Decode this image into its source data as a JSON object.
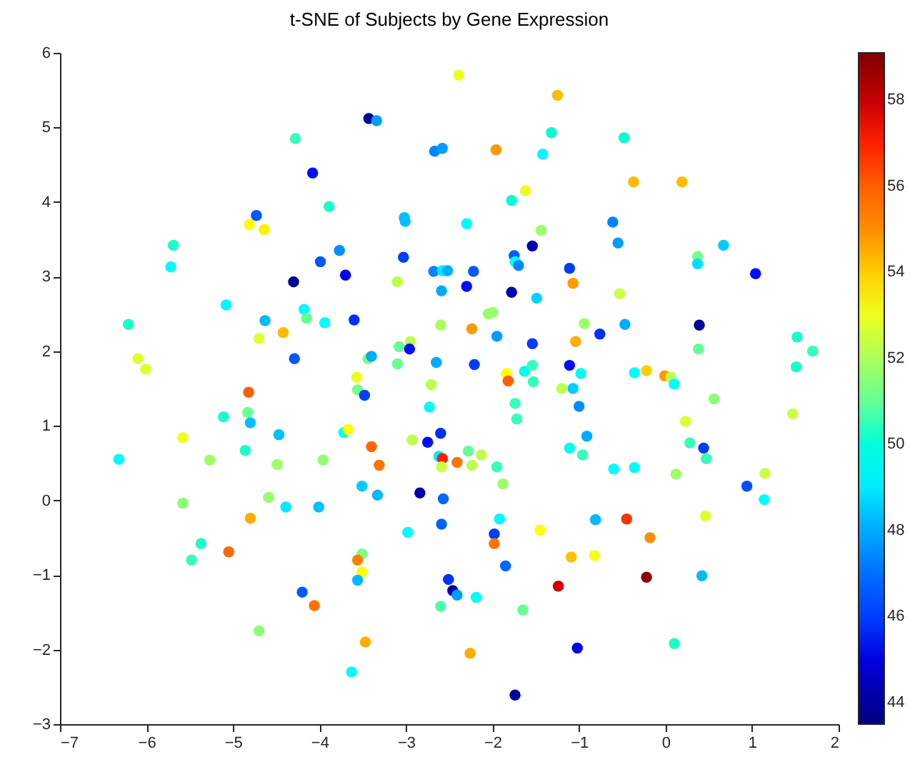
{
  "chart_data": {
    "type": "scatter",
    "title": "t-SNE of Subjects by Gene Expression",
    "marker": "circle",
    "xlim": [
      -7,
      2
    ],
    "xticks": [
      -7,
      -6,
      -5,
      -4,
      -3,
      -2,
      -1,
      0,
      1,
      2
    ],
    "ylim": [
      -3,
      6
    ],
    "yticks": [
      -3,
      -2,
      -1,
      0,
      1,
      2,
      3,
      4,
      5,
      6
    ],
    "clim": [
      43.5,
      59.1
    ],
    "cticks": [
      44,
      46,
      48,
      50,
      52,
      54,
      56,
      58
    ],
    "x": [
      -4.28,
      -4.08,
      -3.89,
      -4.73,
      -4.81,
      -4.64,
      -5.69,
      -5.72,
      -3.99,
      -4.3,
      -5.08,
      -4.18,
      -4.15,
      -3.94,
      -6.21,
      -4.63,
      -4.42,
      -4.7,
      -4.29,
      -6.1,
      -6.01,
      -4.82,
      -2.39,
      -1.25,
      -3.43,
      -3.34,
      -1.32,
      -2.67,
      -2.58,
      -1.96,
      -1.42,
      -1.62,
      -1.78,
      -3.02,
      -3.01,
      -2.3,
      -1.44,
      -1.54,
      -3.77,
      -3.03,
      -1.75,
      -1.74,
      -1.7,
      -1.11,
      -3.7,
      -3.1,
      -2.68,
      -2.58,
      -2.52,
      -2.22,
      -2.3,
      -2.59,
      -1.78,
      -1.07,
      -1.49,
      -3.6,
      -2.05,
      -2.0,
      -2.6,
      -2.24,
      -1.95,
      -0.94,
      -1.54,
      -1.04,
      -2.95,
      -3.08,
      -2.96,
      -3.44,
      -3.4,
      -3.1,
      -2.65,
      -2.21,
      -1.11,
      -0.98,
      -3.57,
      -3.56,
      -3.48,
      -2.71,
      -1.84,
      -1.82,
      -1.63,
      -1.54,
      -1.53,
      -1.2,
      -1.07,
      -0.48,
      -0.37,
      0.19,
      -0.61,
      -0.55,
      0.67,
      0.37,
      0.37,
      1.04,
      -0.53,
      -0.76,
      -0.47,
      0.39,
      0.38,
      1.52,
      1.7,
      1.51,
      -0.36,
      -0.22,
      -0.01,
      0.06,
      0.1,
      -5.11,
      -4.83,
      -4.8,
      -4.47,
      -5.58,
      -6.32,
      -5.27,
      -4.86,
      -4.49,
      -3.96,
      -5.58,
      -4.59,
      -4.39,
      -4.01,
      -4.8,
      -5.37,
      -5.48,
      -5.05,
      -4.2,
      -4.06,
      -4.7,
      -2.73,
      -1.74,
      -1.72,
      -1.0,
      -0.91,
      -3.72,
      -3.67,
      -3.4,
      -3.31,
      -2.93,
      -2.75,
      -2.6,
      -2.62,
      -2.58,
      -2.59,
      -2.41,
      -2.28,
      -2.24,
      -2.13,
      -1.95,
      -1.88,
      -1.11,
      -0.96,
      -3.51,
      -3.33,
      -2.84,
      -2.57,
      -2.59,
      -2.98,
      -1.92,
      -1.98,
      -1.98,
      -1.45,
      -1.09,
      -0.82,
      -3.51,
      -3.56,
      -3.51,
      -3.56,
      -1.85,
      -2.51,
      -2.46,
      -2.41,
      -2.19,
      -1.24,
      -2.6,
      -1.65,
      -3.47,
      -2.26,
      -1.02,
      -3.63,
      -1.74,
      0.56,
      1.47,
      0.23,
      0.28,
      0.44,
      0.47,
      -0.6,
      -0.36,
      0.12,
      1.15,
      0.94,
      1.14,
      -0.81,
      -0.45,
      -0.18,
      0.46,
      -0.22,
      0.42,
      0.1
    ],
    "values": [
      4.85,
      4.39,
      3.94,
      3.82,
      3.7,
      3.63,
      3.42,
      3.13,
      3.2,
      2.93,
      2.62,
      2.56,
      2.44,
      2.38,
      2.36,
      2.41,
      2.25,
      2.17,
      1.9,
      1.9,
      1.76,
      1.45,
      5.7,
      5.43,
      5.12,
      5.09,
      4.93,
      4.68,
      4.72,
      4.7,
      4.64,
      4.15,
      4.02,
      3.79,
      3.74,
      3.71,
      3.62,
      3.41,
      3.35,
      3.26,
      3.28,
      3.2,
      3.15,
      3.11,
      3.02,
      2.93,
      3.07,
      3.08,
      3.08,
      3.07,
      2.87,
      2.81,
      2.79,
      2.91,
      2.71,
      2.42,
      2.5,
      2.52,
      2.35,
      2.3,
      2.2,
      2.37,
      2.1,
      2.13,
      2.13,
      2.06,
      2.03,
      1.9,
      1.93,
      1.83,
      1.85,
      1.82,
      1.81,
      1.7,
      1.65,
      1.48,
      1.41,
      1.55,
      1.7,
      1.6,
      1.73,
      1.81,
      1.59,
      1.5,
      1.5,
      4.86,
      4.27,
      4.27,
      3.73,
      3.45,
      3.42,
      3.27,
      3.17,
      3.04,
      2.77,
      2.23,
      2.36,
      2.35,
      2.03,
      2.19,
      2.0,
      1.79,
      1.71,
      1.74,
      1.67,
      1.65,
      1.56,
      1.12,
      1.18,
      1.04,
      0.88,
      0.84,
      0.55,
      0.54,
      0.67,
      0.48,
      0.54,
      -0.04,
      0.04,
      -0.09,
      -0.09,
      -0.24,
      -0.58,
      -0.8,
      -0.69,
      -1.23,
      -1.41,
      -1.75,
      1.25,
      1.3,
      1.09,
      1.26,
      0.86,
      0.91,
      0.95,
      0.72,
      0.47,
      0.81,
      0.78,
      0.9,
      0.59,
      0.56,
      0.45,
      0.51,
      0.66,
      0.47,
      0.61,
      0.45,
      0.22,
      0.7,
      0.61,
      0.19,
      0.07,
      0.1,
      0.02,
      -0.32,
      -0.43,
      -0.25,
      -0.45,
      -0.58,
      -0.4,
      -0.76,
      -0.74,
      -0.72,
      -0.8,
      -0.96,
      -1.07,
      -0.88,
      -1.06,
      -1.21,
      -1.27,
      -1.3,
      -1.15,
      -1.42,
      -1.47,
      -1.9,
      -2.05,
      -1.98,
      -2.3,
      -2.61,
      1.36,
      1.16,
      1.06,
      0.77,
      0.7,
      0.56,
      0.42,
      0.44,
      0.35,
      0.36,
      0.19,
      0.01,
      -0.26,
      -0.25,
      -0.5,
      -0.21,
      -1.03,
      -1.01,
      -1.92
    ],
    "cvalues": [
      50.5,
      45.5,
      50.3,
      46.5,
      53.3,
      53.5,
      50.3,
      49.3,
      46.5,
      43.8,
      49.2,
      49.3,
      51,
      49.3,
      50.3,
      48.2,
      54.3,
      52.8,
      46.5,
      52.8,
      52.8,
      56,
      53,
      54.3,
      44,
      47.8,
      50.2,
      47.5,
      47.8,
      54.8,
      49.2,
      53,
      50.1,
      48.3,
      48.3,
      49.3,
      51.8,
      44.3,
      47.6,
      46,
      46.6,
      49.5,
      47.5,
      46,
      45.3,
      52.3,
      47.5,
      49,
      48,
      46.5,
      45.5,
      48,
      44.3,
      54.8,
      48.6,
      45.8,
      51.7,
      51.7,
      52,
      54.8,
      47.8,
      51.7,
      46,
      54.5,
      52.3,
      51,
      45.5,
      51.2,
      48,
      51,
      48,
      46,
      45.5,
      49.7,
      53,
      51.2,
      46,
      52.3,
      53.2,
      56,
      49.8,
      50.5,
      50.5,
      52.3,
      48.5,
      50.2,
      54.3,
      54.3,
      47.5,
      47.8,
      48.5,
      51.2,
      48.8,
      45.5,
      52.5,
      45.8,
      48,
      44,
      51,
      50.3,
      50.5,
      50.3,
      49.5,
      54,
      54.8,
      52.3,
      49.5,
      50.3,
      51,
      48.3,
      48.3,
      53,
      49.3,
      51.8,
      50.3,
      51.8,
      51.6,
      51.5,
      51.7,
      49,
      48.3,
      54.5,
      50.3,
      50.5,
      55.8,
      46.5,
      55.5,
      51.5,
      49.3,
      50.5,
      50.5,
      47.6,
      48,
      49.5,
      53.3,
      55.8,
      55.5,
      52.3,
      45.5,
      45.8,
      49,
      57,
      52.5,
      55.5,
      51,
      52.3,
      52.3,
      50.5,
      51.8,
      49.7,
      50.5,
      48.5,
      48.2,
      44.2,
      46.8,
      46.7,
      49.3,
      49.3,
      46,
      55.5,
      53.2,
      54.2,
      53.1,
      51.3,
      55.2,
      53.3,
      48.2,
      46.8,
      45.8,
      44.3,
      47.8,
      49.5,
      57.8,
      50.7,
      51,
      54.5,
      54.5,
      45.3,
      49.3,
      44,
      51.5,
      52.5,
      52.7,
      50.5,
      46,
      50.5,
      49.5,
      49.3,
      51.8,
      52.5,
      46.3,
      49.3,
      48.2,
      56.8,
      55,
      52.8,
      58.8,
      48.2,
      50.3
    ]
  }
}
